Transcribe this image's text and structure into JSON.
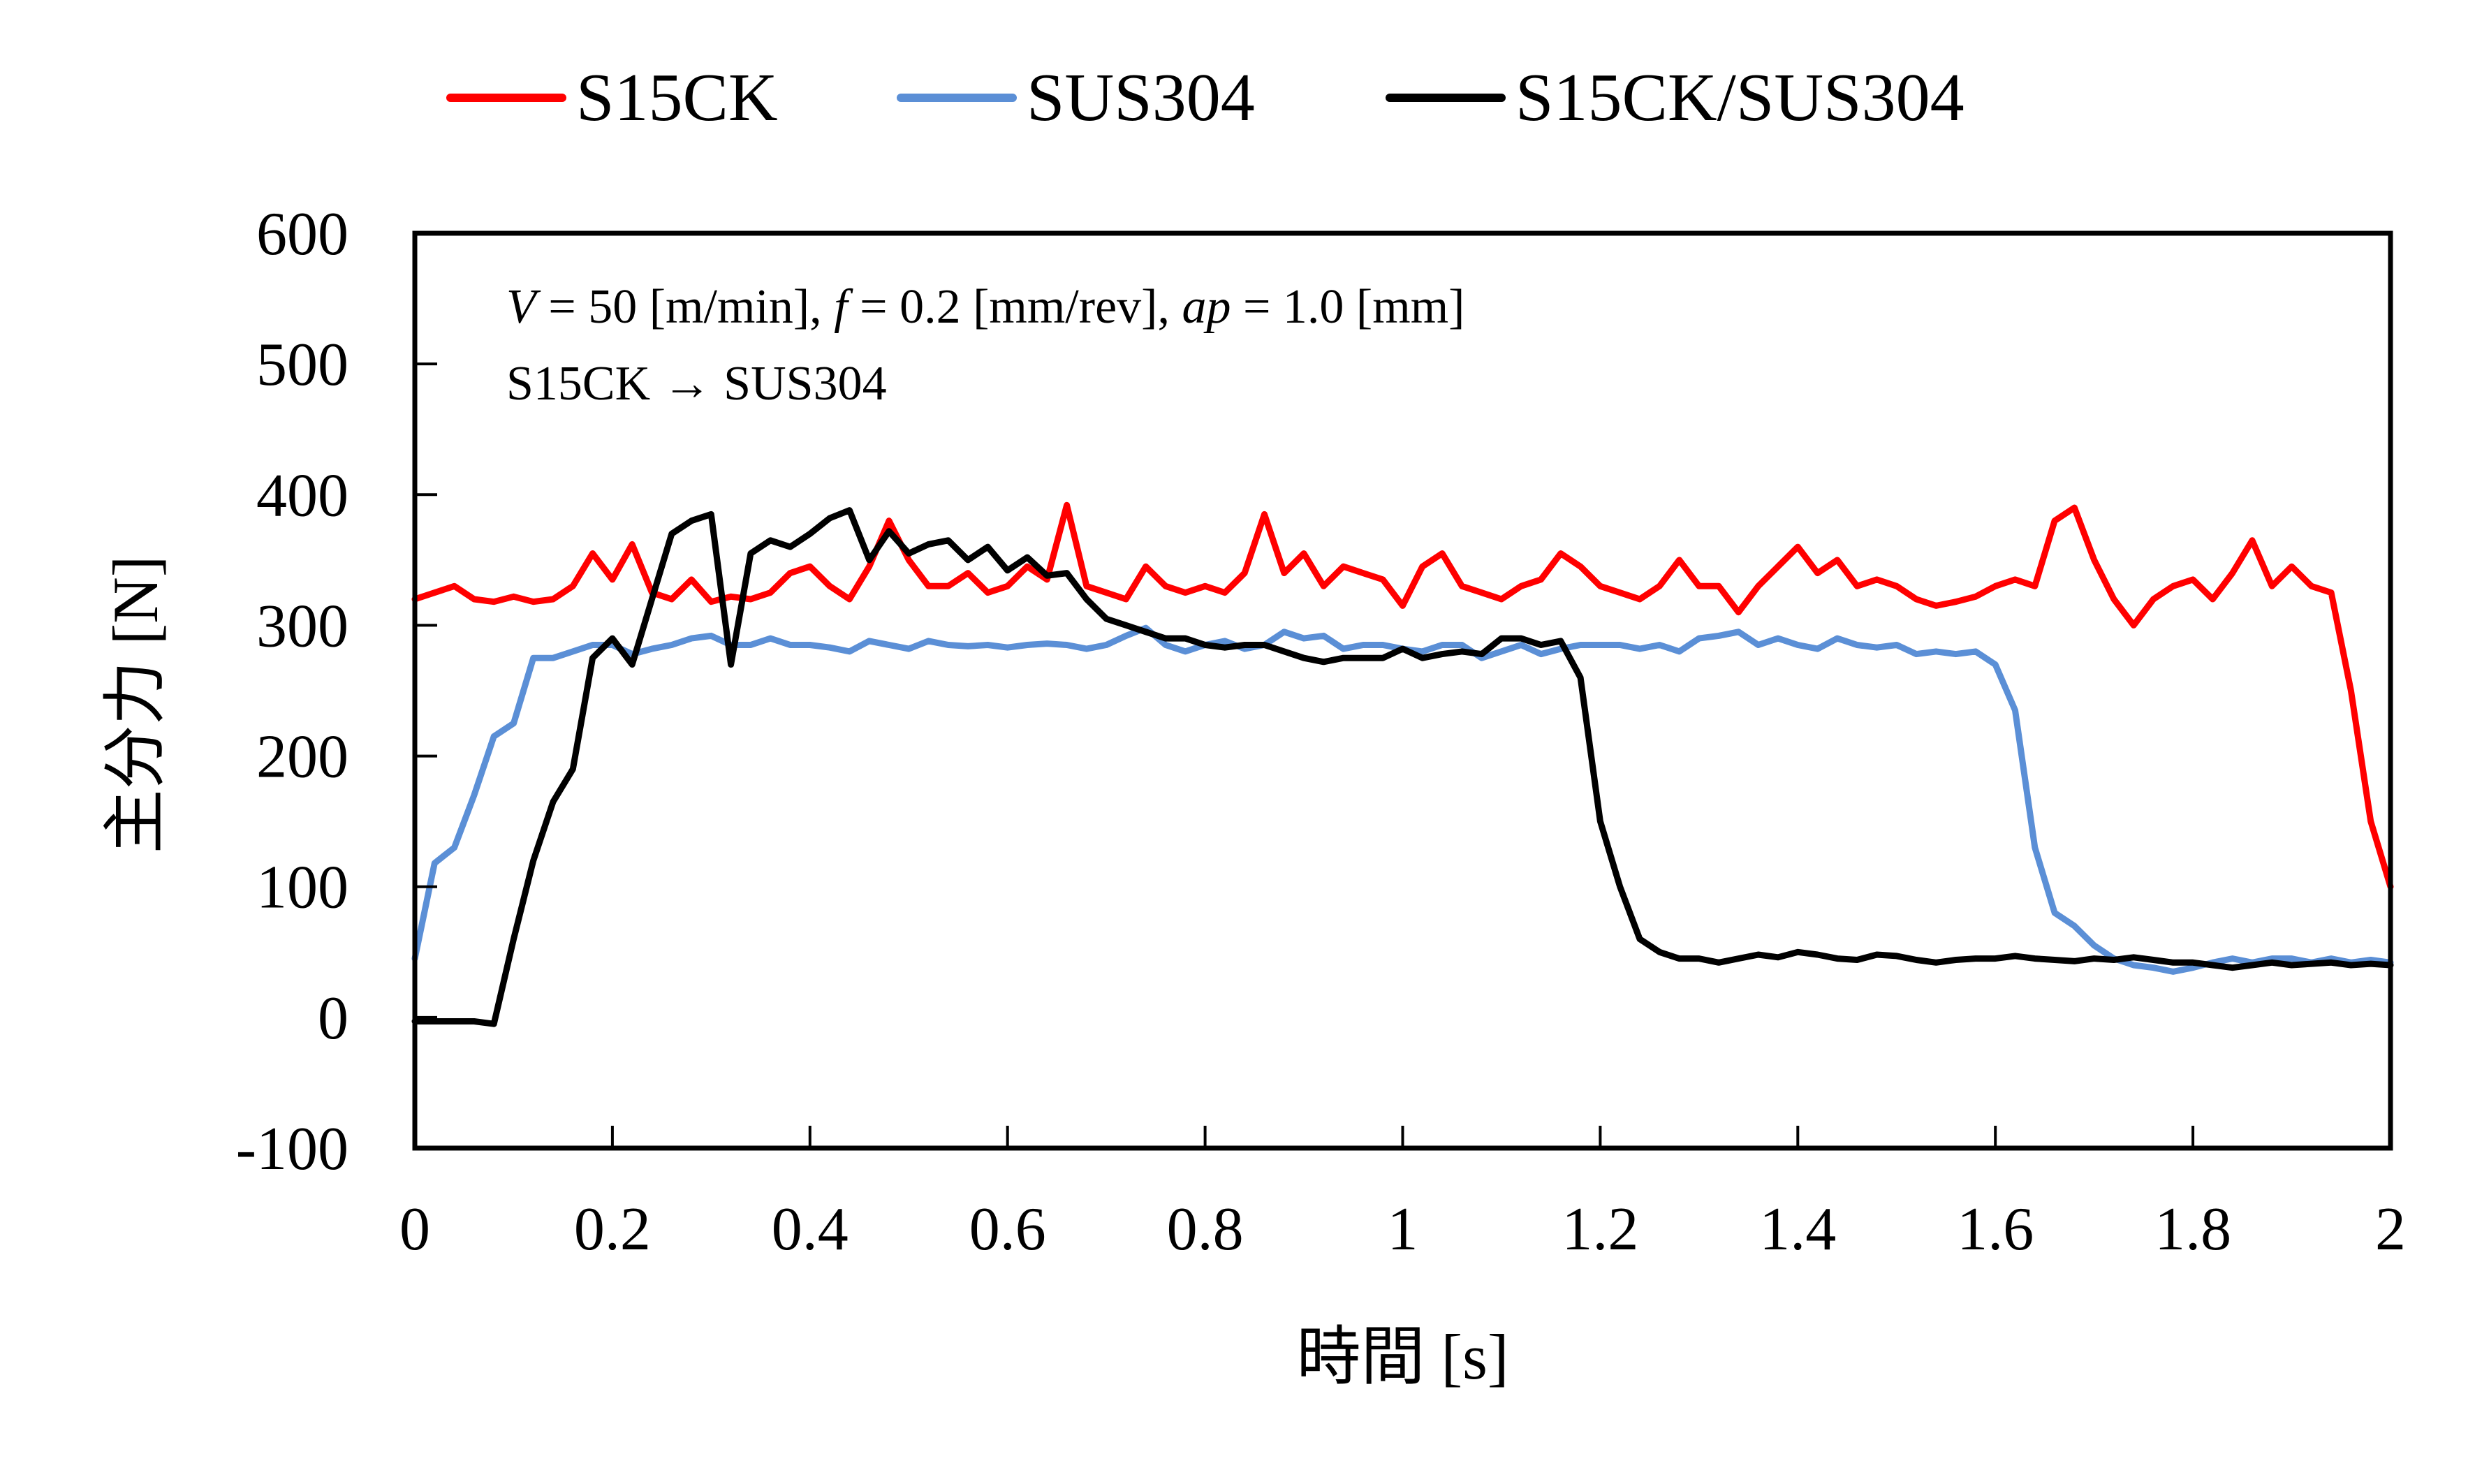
{
  "chart_data": {
    "type": "line",
    "title": "",
    "xlabel": "時間 [s]",
    "ylabel": "主分力 [N]",
    "xlim": [
      0,
      2
    ],
    "ylim": [
      -100,
      600
    ],
    "xticks": [
      0,
      0.2,
      0.4,
      0.6,
      0.8,
      1,
      1.2,
      1.4,
      1.6,
      1.8,
      2
    ],
    "xtick_labels": [
      "0",
      "0.2",
      "0.4",
      "0.6",
      "0.8",
      "1",
      "1.2",
      "1.4",
      "1.6",
      "1.8",
      "2"
    ],
    "yticks": [
      -100,
      0,
      100,
      200,
      300,
      400,
      500,
      600
    ],
    "ytick_labels": [
      "-100",
      "0",
      "100",
      "200",
      "300",
      "400",
      "500",
      "600"
    ],
    "grid": false,
    "legend_position": "top",
    "annotations": [
      {
        "text_parts": [
          {
            "t": "V",
            "italic": true
          },
          {
            "t": " = 50 [m/min], ",
            "italic": false
          },
          {
            "t": "f",
            "italic": true
          },
          {
            "t": " = 0.2 [mm/rev], ",
            "italic": false
          },
          {
            "t": "ap",
            "italic": true
          },
          {
            "t": " = 1.0 [mm]",
            "italic": false
          }
        ]
      },
      {
        "text_parts": [
          {
            "t": "S15CK → SUS304",
            "italic": false
          }
        ]
      }
    ],
    "x": [
      0.0,
      0.02,
      0.04,
      0.06,
      0.08,
      0.1,
      0.12,
      0.14,
      0.16,
      0.18,
      0.2,
      0.22,
      0.24,
      0.26,
      0.28,
      0.3,
      0.32,
      0.34,
      0.36,
      0.38,
      0.4,
      0.42,
      0.44,
      0.46,
      0.48,
      0.5,
      0.52,
      0.54,
      0.56,
      0.58,
      0.6,
      0.62,
      0.64,
      0.66,
      0.68,
      0.7,
      0.72,
      0.74,
      0.76,
      0.78,
      0.8,
      0.82,
      0.84,
      0.86,
      0.88,
      0.9,
      0.92,
      0.94,
      0.96,
      0.98,
      1.0,
      1.02,
      1.04,
      1.06,
      1.08,
      1.1,
      1.12,
      1.14,
      1.16,
      1.18,
      1.2,
      1.22,
      1.24,
      1.26,
      1.28,
      1.3,
      1.32,
      1.34,
      1.36,
      1.38,
      1.4,
      1.42,
      1.44,
      1.46,
      1.48,
      1.5,
      1.52,
      1.54,
      1.56,
      1.58,
      1.6,
      1.62,
      1.64,
      1.66,
      1.68,
      1.7,
      1.72,
      1.74,
      1.76,
      1.78,
      1.8,
      1.82,
      1.84,
      1.86,
      1.88,
      1.9,
      1.92,
      1.94,
      1.96,
      1.98,
      2.0
    ],
    "series": [
      {
        "name": "S15CK",
        "color": "#ff0000",
        "values": [
          320,
          325,
          330,
          320,
          318,
          322,
          318,
          320,
          330,
          355,
          335,
          362,
          325,
          320,
          335,
          318,
          322,
          320,
          325,
          340,
          345,
          330,
          320,
          345,
          380,
          350,
          330,
          330,
          340,
          325,
          330,
          345,
          335,
          392,
          330,
          325,
          320,
          345,
          330,
          325,
          330,
          325,
          340,
          385,
          340,
          355,
          330,
          345,
          340,
          335,
          315,
          345,
          355,
          330,
          325,
          320,
          330,
          335,
          355,
          345,
          330,
          325,
          320,
          330,
          350,
          330,
          330,
          310,
          330,
          345,
          360,
          340,
          350,
          330,
          335,
          330,
          320,
          315,
          318,
          322,
          330,
          335,
          330,
          380,
          390,
          350,
          320,
          300,
          320,
          330,
          335,
          320,
          340,
          365,
          330,
          345,
          330,
          325,
          250,
          150,
          100
        ]
      },
      {
        "name": "SUS304",
        "color": "#5b8fd6",
        "values": [
          45,
          118,
          130,
          170,
          215,
          225,
          275,
          275,
          280,
          285,
          285,
          278,
          282,
          285,
          290,
          292,
          285,
          285,
          290,
          285,
          285,
          283,
          280,
          288,
          285,
          282,
          288,
          285,
          284,
          285,
          283,
          285,
          286,
          285,
          282,
          285,
          292,
          298,
          285,
          280,
          285,
          288,
          282,
          285,
          295,
          290,
          292,
          282,
          285,
          285,
          282,
          280,
          285,
          285,
          275,
          280,
          285,
          278,
          282,
          285,
          285,
          285,
          282,
          285,
          280,
          290,
          292,
          295,
          285,
          290,
          285,
          282,
          290,
          285,
          283,
          285,
          278,
          280,
          278,
          280,
          270,
          235,
          130,
          80,
          70,
          55,
          45,
          40,
          38,
          35,
          38,
          42,
          45,
          42,
          45,
          45,
          42,
          45,
          42,
          44,
          42
        ]
      },
      {
        "name": "S15CK/SUS304",
        "color": "#000000",
        "values": [
          -3,
          -3,
          -3,
          -3,
          -5,
          60,
          120,
          165,
          190,
          275,
          290,
          270,
          320,
          370,
          380,
          385,
          270,
          355,
          365,
          360,
          370,
          382,
          388,
          350,
          372,
          355,
          362,
          365,
          350,
          360,
          342,
          352,
          338,
          340,
          320,
          305,
          300,
          295,
          290,
          290,
          285,
          283,
          285,
          285,
          280,
          275,
          272,
          275,
          275,
          275,
          282,
          275,
          278,
          280,
          278,
          290,
          290,
          285,
          288,
          260,
          150,
          100,
          60,
          50,
          45,
          45,
          42,
          45,
          48,
          46,
          50,
          48,
          45,
          44,
          48,
          47,
          44,
          42,
          44,
          45,
          45,
          47,
          45,
          44,
          43,
          45,
          44,
          46,
          44,
          42,
          42,
          40,
          38,
          40,
          42,
          40,
          41,
          42,
          40,
          41,
          40
        ]
      }
    ]
  }
}
